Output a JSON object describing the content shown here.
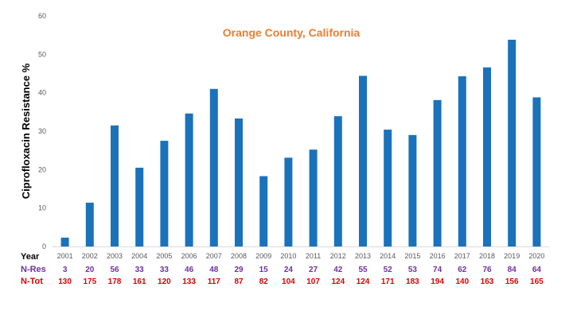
{
  "chart_data": {
    "type": "bar",
    "title": "Orange County, California",
    "ylabel": "Ciprofloxacin Resistance %",
    "xlabel": "",
    "ylim": [
      0,
      60
    ],
    "yticks": [
      0,
      10,
      20,
      30,
      40,
      50,
      60
    ],
    "grid": false,
    "categories": [
      "2001",
      "2002",
      "2003",
      "2004",
      "2005",
      "2006",
      "2007",
      "2008",
      "2009",
      "2010",
      "2011",
      "2012",
      "2013",
      "2014",
      "2015",
      "2016",
      "2017",
      "2018",
      "2019",
      "2020"
    ],
    "values": [
      2.3,
      11.4,
      31.5,
      20.5,
      27.5,
      34.6,
      41.0,
      33.3,
      18.3,
      23.1,
      25.2,
      33.9,
      44.4,
      30.4,
      29.0,
      38.1,
      44.3,
      46.6,
      53.8,
      38.8
    ],
    "bar_color": "#1a72bb"
  },
  "table": {
    "rows": [
      {
        "label": "Year",
        "label_color": "#000000"
      },
      {
        "label": "N-Res",
        "label_color": "#7030a0",
        "values": [
          "3",
          "20",
          "56",
          "33",
          "33",
          "46",
          "48",
          "29",
          "15",
          "24",
          "27",
          "42",
          "55",
          "52",
          "53",
          "74",
          "62",
          "76",
          "84",
          "64"
        ]
      },
      {
        "label": "N-Tot",
        "label_color": "#e00000",
        "values": [
          "130",
          "175",
          "178",
          "161",
          "120",
          "133",
          "117",
          "87",
          "82",
          "104",
          "107",
          "124",
          "124",
          "171",
          "183",
          "194",
          "140",
          "163",
          "156",
          "165"
        ]
      }
    ]
  }
}
